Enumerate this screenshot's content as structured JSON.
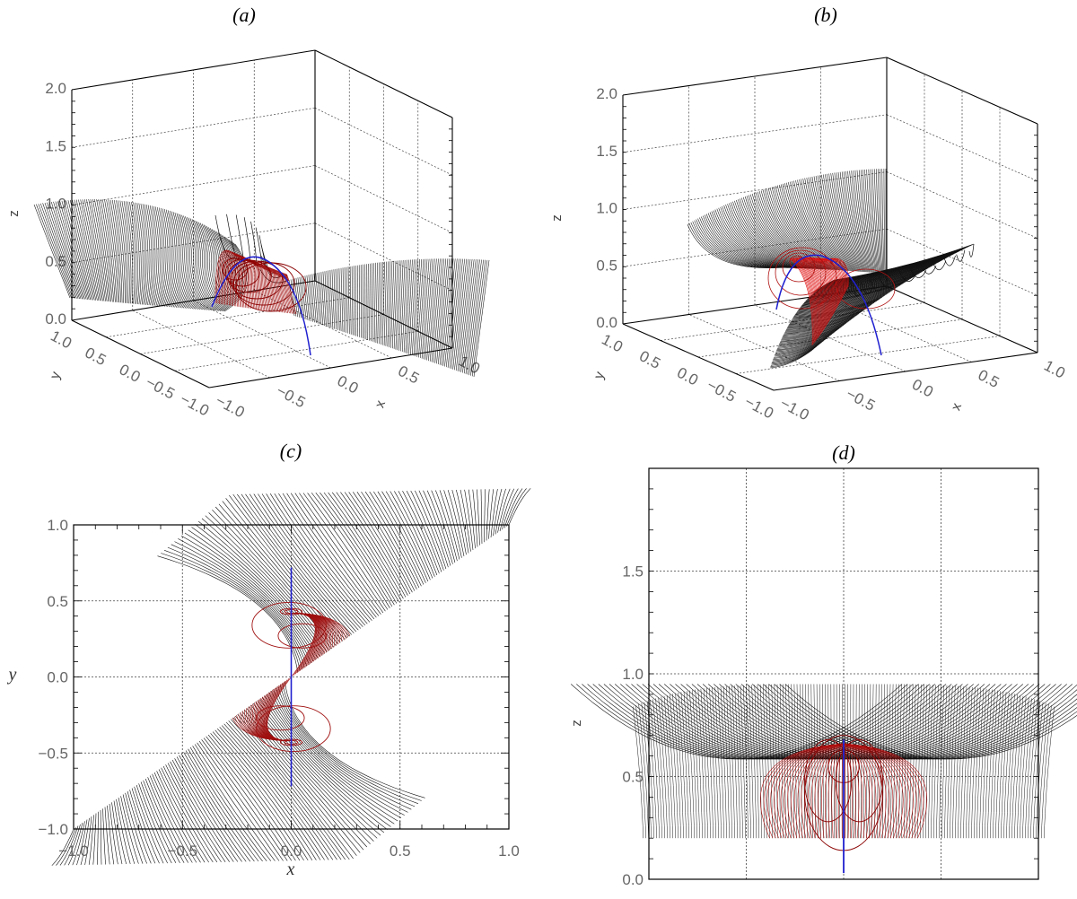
{
  "panels": {
    "a": {
      "title": "(a)"
    },
    "b": {
      "title": "(b)"
    },
    "c": {
      "title": "(c)"
    },
    "d": {
      "title": "(d)"
    }
  },
  "chart_data": [
    {
      "panel": "(a)",
      "type": "line",
      "projection": "3d perspective box",
      "xlabel": "x",
      "ylabel": "y",
      "zlabel": "z",
      "xlim": [
        -1,
        1
      ],
      "ylim": [
        -1,
        1
      ],
      "zlim": [
        0,
        2
      ],
      "xticks": [
        "−1.0",
        "−0.5",
        "0.0",
        "0.5",
        "1.0"
      ],
      "yticks": [
        "−1.0",
        "−0.5",
        "0.0",
        "0.5",
        "1.0"
      ],
      "zticks": [
        "0.0",
        "0.5",
        "1.0",
        "1.5",
        "2.0"
      ],
      "grid": true,
      "colors": {
        "field_lines": "#000000",
        "twisted_field_lines": "#b01010",
        "axis_curve": "#2020d0"
      }
    },
    {
      "panel": "(b)",
      "type": "line",
      "projection": "3d perspective box",
      "xlabel": "x",
      "ylabel": "y",
      "zlabel": "z",
      "xlim": [
        -1,
        1
      ],
      "ylim": [
        -1,
        1
      ],
      "zlim": [
        0,
        2
      ],
      "xticks": [
        "−1.0",
        "−0.5",
        "0.0",
        "0.5",
        "1.0"
      ],
      "yticks": [
        "−1.0",
        "−0.5",
        "0.0",
        "0.5",
        "1.0"
      ],
      "zticks": [
        "0.0",
        "0.5",
        "1.0",
        "1.5",
        "2.0"
      ],
      "grid": true,
      "colors": {
        "field_lines": "#000000",
        "twisted_field_lines": "#e01010",
        "axis_curve": "#2020d0"
      }
    },
    {
      "panel": "(c)",
      "type": "line",
      "view": "top (x-y plane)",
      "xlabel": "x",
      "ylabel": "y",
      "xlim": [
        -1,
        1
      ],
      "ylim": [
        -1,
        1
      ],
      "xticks": [
        "−1.0",
        "−0.5",
        "0.0",
        "0.5",
        "1.0"
      ],
      "yticks": [
        "−1.0",
        "−0.5",
        "0.0",
        "0.5",
        "1.0"
      ],
      "grid": true,
      "axis_line": {
        "x": 0,
        "y_range": [
          -0.72,
          0.72
        ]
      },
      "colors": {
        "field_lines": "#000000",
        "twisted_field_lines": "#a01010",
        "axis_line": "#2020d0"
      }
    },
    {
      "panel": "(d)",
      "type": "line",
      "view": "side (x-z plane)",
      "ylabel": "z",
      "xlim": [
        -1,
        1
      ],
      "ylim": [
        0,
        2
      ],
      "yticks": [
        "0.0",
        "0.5",
        "1.0",
        "1.5"
      ],
      "grid": true,
      "axis_line": {
        "x": 0,
        "z_range": [
          0.03,
          0.68
        ]
      },
      "colors": {
        "field_lines": "#000000",
        "twisted_field_lines": "#b01010",
        "axis_line": "#2020d0"
      }
    }
  ]
}
